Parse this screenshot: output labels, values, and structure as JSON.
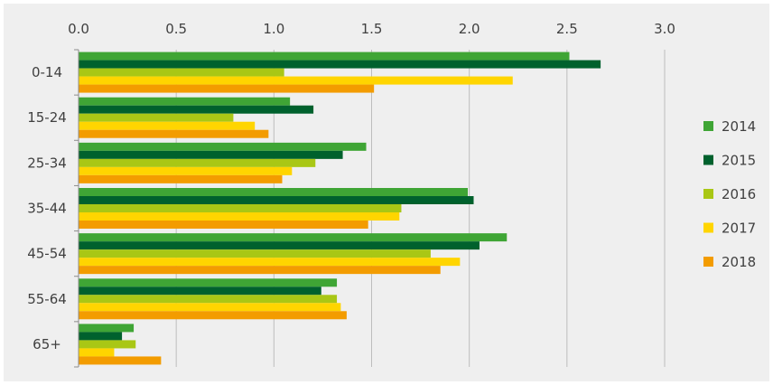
{
  "chart_data": {
    "type": "bar",
    "orientation": "horizontal",
    "categories": [
      "0-14",
      "15-24",
      "25-34",
      "35-44",
      "45-54",
      "55-64",
      "65+"
    ],
    "series": [
      {
        "name": "2014",
        "color": "#3fa535",
        "values": [
          2.51,
          1.08,
          1.47,
          1.99,
          2.19,
          1.32,
          0.28
        ]
      },
      {
        "name": "2015",
        "color": "#00612d",
        "values": [
          2.67,
          1.2,
          1.35,
          2.02,
          2.05,
          1.24,
          0.22
        ]
      },
      {
        "name": "2016",
        "color": "#a9c715",
        "values": [
          1.05,
          0.79,
          1.21,
          1.65,
          1.8,
          1.32,
          0.29
        ]
      },
      {
        "name": "2017",
        "color": "#ffd500",
        "values": [
          2.22,
          0.9,
          1.09,
          1.64,
          1.95,
          1.34,
          0.18
        ]
      },
      {
        "name": "2018",
        "color": "#f39c00",
        "values": [
          1.51,
          0.97,
          1.04,
          1.48,
          1.85,
          1.37,
          0.42
        ]
      }
    ],
    "xlim": [
      0,
      3.0
    ],
    "x_ticks": [
      "0.0",
      "0.5",
      "1.0",
      "1.5",
      "2.0",
      "2.5",
      "3.0"
    ],
    "x_axis_position": "top",
    "legend_position": "right",
    "grid": true
  }
}
